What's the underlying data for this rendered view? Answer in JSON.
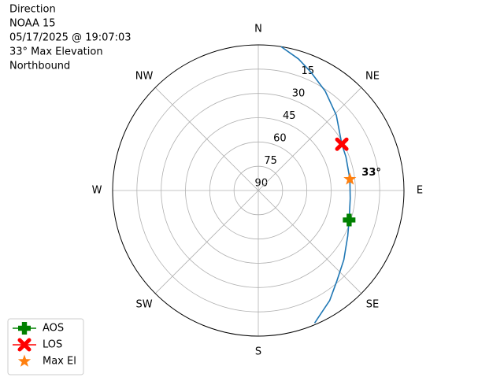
{
  "chart_data": {
    "type": "polar",
    "title_lines": [
      "Direction",
      "NOAA 15",
      "05/17/2025 @ 19:07:03",
      "33° Max Elevation",
      "Northbound"
    ],
    "xticks": [
      {
        "value": 0,
        "label": "N"
      },
      {
        "value": 45,
        "label": "NE"
      },
      {
        "value": 90,
        "label": "E"
      },
      {
        "value": 135,
        "label": "SE"
      },
      {
        "value": 180,
        "label": "S"
      },
      {
        "value": 225,
        "label": "SW"
      },
      {
        "value": 270,
        "label": "W"
      },
      {
        "value": 315,
        "label": "NW"
      }
    ],
    "ylim": [
      90,
      0
    ],
    "yticks": [
      15,
      30,
      45,
      60,
      75,
      90
    ],
    "grid": true,
    "series": [
      {
        "color": "#1f77b4",
        "marker": "none",
        "x": [
          9,
          17,
          24,
          34,
          46,
          61,
          69,
          83,
          95,
          108,
          117,
          129,
          139,
          147,
          157
        ],
        "values": [
          0,
          5,
          10,
          16,
          23,
          31,
          32,
          33,
          33,
          31,
          28,
          22,
          16,
          9,
          1
        ]
      },
      {
        "name": "AOS",
        "color": "#008000",
        "marker": "plus",
        "x": [
          108
        ],
        "values": [
          31
        ]
      },
      {
        "name": "LOS",
        "color": "#ff0000",
        "marker": "x",
        "x": [
          61
        ],
        "values": [
          31
        ]
      },
      {
        "name": "Max El",
        "color": "#ff7f0e",
        "marker": "star",
        "x": [
          83
        ],
        "values": [
          33
        ]
      }
    ],
    "annotation": {
      "text": "33°",
      "x": 83,
      "y": 33
    },
    "legend": "lower left"
  }
}
